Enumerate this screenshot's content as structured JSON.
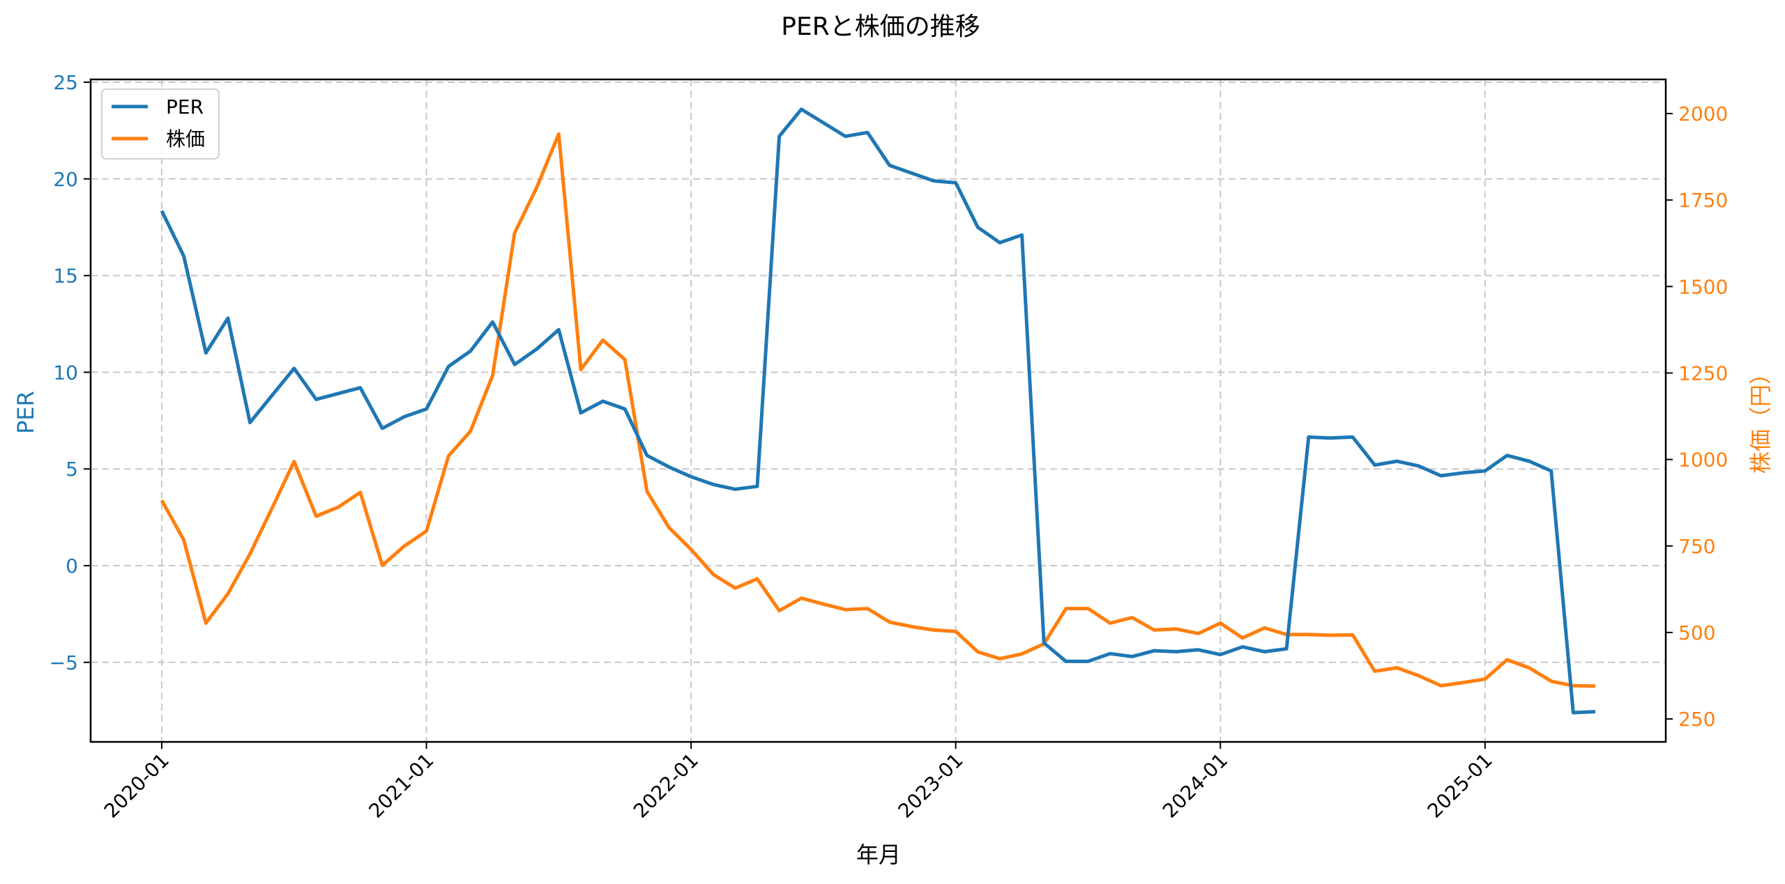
{
  "chart_data": {
    "type": "line",
    "title": "PERと株価の推移",
    "xlabel": "年月",
    "ylabel_left": "PER",
    "ylabel_right": "株価（円）",
    "ylim_left": [
      -9.1,
      25.2
    ],
    "ylim_right": [
      190,
      2100
    ],
    "left_ticks": [
      25,
      20,
      15,
      10,
      5,
      0,
      -5
    ],
    "right_ticks": [
      2000,
      1750,
      1500,
      1250,
      1000,
      750,
      500,
      250
    ],
    "x_ticks": [
      "2020-01",
      "2021-01",
      "2022-01",
      "2023-01",
      "2024-01",
      "2025-01"
    ],
    "grid": true,
    "legend_position": "upper left",
    "x": [
      "2020-01",
      "2020-02",
      "2020-03",
      "2020-04",
      "2020-05",
      "2020-06",
      "2020-07",
      "2020-08",
      "2020-09",
      "2020-10",
      "2020-11",
      "2020-12",
      "2021-01",
      "2021-02",
      "2021-03",
      "2021-04",
      "2021-05",
      "2021-06",
      "2021-07",
      "2021-08",
      "2021-09",
      "2021-10",
      "2021-11",
      "2021-12",
      "2022-01",
      "2022-02",
      "2022-03",
      "2022-04",
      "2022-05",
      "2022-06",
      "2022-07",
      "2022-08",
      "2022-09",
      "2022-10",
      "2022-11",
      "2022-12",
      "2023-01",
      "2023-02",
      "2023-03",
      "2023-04",
      "2023-05",
      "2023-06",
      "2023-07",
      "2023-08",
      "2023-09",
      "2023-10",
      "2023-11",
      "2023-12",
      "2024-01",
      "2024-02",
      "2024-03",
      "2024-04",
      "2024-05",
      "2024-06",
      "2024-07",
      "2024-08",
      "2024-09",
      "2024-10",
      "2024-11",
      "2024-12",
      "2025-01",
      "2025-02",
      "2025-03",
      "2025-04",
      "2025-05",
      "2025-06"
    ],
    "series": [
      {
        "name": "PER",
        "axis": "left",
        "color": "#1f77b4",
        "values": [
          18.35,
          16.0,
          11.0,
          12.8,
          7.4,
          8.8,
          10.2,
          8.6,
          8.9,
          9.2,
          7.1,
          7.7,
          8.1,
          10.3,
          11.1,
          12.6,
          10.4,
          11.2,
          12.2,
          7.9,
          8.5,
          8.1,
          5.7,
          5.1,
          4.6,
          4.2,
          3.95,
          4.1,
          22.2,
          23.6,
          22.9,
          22.2,
          22.4,
          20.7,
          20.3,
          19.9,
          19.8,
          17.5,
          16.7,
          17.1,
          -4.0,
          -4.95,
          -4.95,
          -4.55,
          -4.7,
          -4.4,
          -4.45,
          -4.35,
          -4.6,
          -4.2,
          -4.45,
          -4.3,
          6.65,
          6.6,
          6.65,
          5.2,
          5.4,
          5.15,
          4.65,
          4.8,
          4.9,
          5.7,
          5.4,
          4.9,
          -7.6,
          -7.55
        ]
      },
      {
        "name": "株価",
        "axis": "right",
        "color": "#ff7f0e",
        "values": [
          882,
          767,
          527,
          612,
          727,
          859,
          994,
          836,
          862,
          905,
          694,
          750,
          793,
          1010,
          1082,
          1243,
          1655,
          1786,
          1941,
          1260,
          1345,
          1289,
          908,
          803,
          740,
          668,
          628,
          655,
          563,
          599,
          582,
          566,
          569,
          530,
          517,
          507,
          503,
          444,
          424,
          438,
          467,
          569,
          569,
          527,
          543,
          507,
          510,
          497,
          527,
          484,
          513,
          494,
          494,
          492,
          493,
          388,
          398,
          375,
          346,
          355,
          365,
          421,
          398,
          359,
          346,
          345
        ]
      }
    ]
  },
  "legend": {
    "items": [
      {
        "label": "PER",
        "color": "#1f77b4"
      },
      {
        "label": "株価",
        "color": "#ff7f0e"
      }
    ]
  },
  "colors": {
    "per": "#1f77b4",
    "price": "#ff7f0e",
    "grid": "#c8c8c8",
    "axis": "#000000"
  }
}
